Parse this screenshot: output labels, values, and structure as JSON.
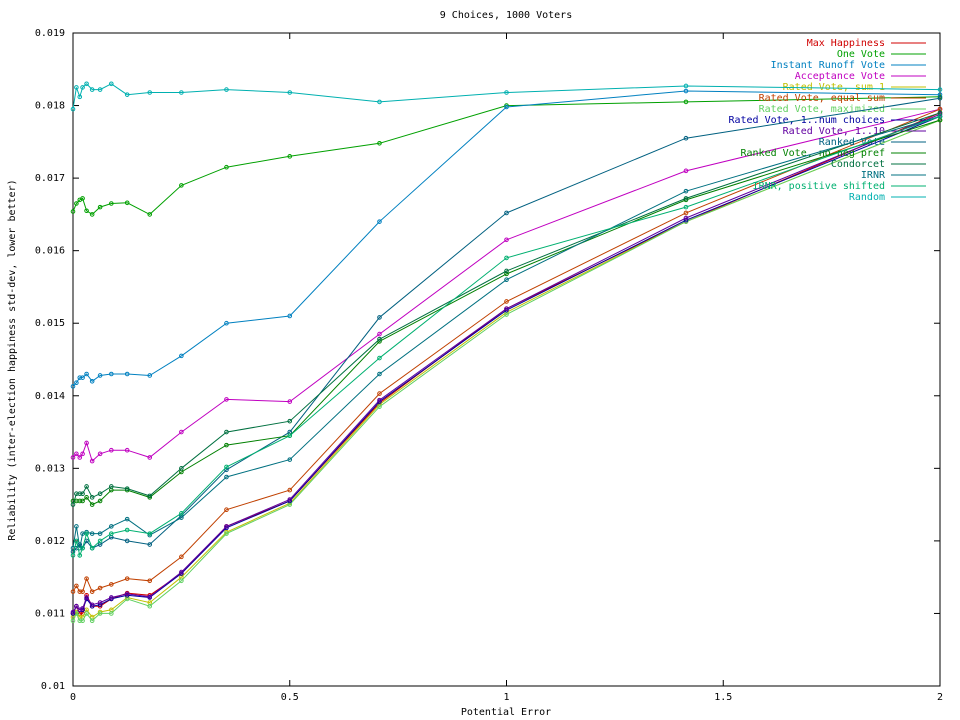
{
  "chart_data": {
    "type": "line",
    "title": "9 Choices, 1000 Voters",
    "x_label": "Potential Error",
    "y_label": "Reliability (inter-election happiness std-dev, lower better)",
    "x": [
      0,
      0.0078,
      0.0156,
      0.0221,
      0.0313,
      0.0442,
      0.0625,
      0.0884,
      0.125,
      0.177,
      0.25,
      0.354,
      0.5,
      0.707,
      1,
      1.414,
      2
    ],
    "xlim": [
      0,
      2
    ],
    "xticks": [
      0,
      0.5,
      1,
      1.5,
      2
    ],
    "ylim": [
      0.01,
      0.019
    ],
    "yticks": [
      0.01,
      0.011,
      0.012,
      0.013,
      0.014,
      0.015,
      0.016,
      0.017,
      0.018,
      0.019
    ],
    "legend": "upper right",
    "grid": false,
    "series": [
      {
        "name": "Max Happiness",
        "color": "#d00000",
        "values": [
          0.011,
          0.0111,
          0.011,
          0.011,
          0.01125,
          0.0111,
          0.0111,
          0.0112,
          0.01128,
          0.01125,
          0.01155,
          0.0122,
          0.01255,
          0.0139,
          0.0152,
          0.0164,
          0.0179
        ]
      },
      {
        "name": "One Vote",
        "color": "#00a000",
        "values": [
          0.01654,
          0.01665,
          0.0167,
          0.01672,
          0.01655,
          0.0165,
          0.0166,
          0.01665,
          0.01666,
          0.0165,
          0.0169,
          0.01715,
          0.0173,
          0.01748,
          0.018,
          0.01805,
          0.01812
        ]
      },
      {
        "name": "Instant Runoff Vote",
        "color": "#0080c0",
        "values": [
          0.01413,
          0.01418,
          0.01425,
          0.01425,
          0.0143,
          0.0142,
          0.01428,
          0.0143,
          0.0143,
          0.01428,
          0.01455,
          0.015,
          0.0151,
          0.0164,
          0.01798,
          0.0182,
          0.01815
        ]
      },
      {
        "name": "Acceptance Vote",
        "color": "#c000c0",
        "values": [
          0.01315,
          0.0132,
          0.01315,
          0.0132,
          0.01335,
          0.0131,
          0.0132,
          0.01325,
          0.01325,
          0.01315,
          0.0135,
          0.01395,
          0.01392,
          0.01485,
          0.01615,
          0.0171,
          0.01795
        ]
      },
      {
        "name": "Rated Vote, sum 1",
        "color": "#c0c000",
        "values": [
          0.01095,
          0.01102,
          0.01095,
          0.01095,
          0.01105,
          0.01095,
          0.01102,
          0.01105,
          0.01122,
          0.01115,
          0.0115,
          0.01212,
          0.01252,
          0.01388,
          0.01515,
          0.0164,
          0.0178
        ]
      },
      {
        "name": "Rated Vote, equal sum",
        "color": "#c04000",
        "values": [
          0.0113,
          0.01138,
          0.0113,
          0.0113,
          0.01148,
          0.0113,
          0.01135,
          0.0114,
          0.01148,
          0.01145,
          0.01178,
          0.01243,
          0.0127,
          0.01403,
          0.0153,
          0.01652,
          0.01795
        ]
      },
      {
        "name": "Rated Vote, maximized",
        "color": "#60d060",
        "values": [
          0.0109,
          0.011,
          0.0109,
          0.0109,
          0.011,
          0.0109,
          0.011,
          0.011,
          0.0112,
          0.0111,
          0.01145,
          0.0121,
          0.0125,
          0.01385,
          0.01512,
          0.0164,
          0.0178
        ]
      },
      {
        "name": "Rated Vote, 1..num choices",
        "color": "#0000a0",
        "values": [
          0.011,
          0.0111,
          0.01105,
          0.01105,
          0.0112,
          0.0111,
          0.01112,
          0.0112,
          0.01125,
          0.01122,
          0.01155,
          0.01218,
          0.01255,
          0.01392,
          0.01518,
          0.01642,
          0.01785
        ]
      },
      {
        "name": "Rated Vote, 1..10",
        "color": "#6000a0",
        "values": [
          0.01102,
          0.0111,
          0.01105,
          0.01107,
          0.01122,
          0.01112,
          0.01115,
          0.01122,
          0.01127,
          0.01123,
          0.01157,
          0.0122,
          0.01257,
          0.01394,
          0.0152,
          0.01645,
          0.01788
        ]
      },
      {
        "name": "Ranked Vote",
        "color": "#006080",
        "values": [
          0.01185,
          0.0119,
          0.01195,
          0.0119,
          0.012,
          0.0119,
          0.01195,
          0.01205,
          0.012,
          0.01195,
          0.01235,
          0.01298,
          0.0135,
          0.01508,
          0.01652,
          0.01755,
          0.0181
        ]
      },
      {
        "name": "Ranked Vote, no neg pref",
        "color": "#008000",
        "values": [
          0.01255,
          0.01255,
          0.01255,
          0.01255,
          0.0126,
          0.0125,
          0.01255,
          0.0127,
          0.0127,
          0.0126,
          0.01295,
          0.01332,
          0.01345,
          0.01475,
          0.01568,
          0.0167,
          0.0178
        ]
      },
      {
        "name": "Condorcet",
        "color": "#007040",
        "values": [
          0.0125,
          0.01265,
          0.01265,
          0.01265,
          0.01275,
          0.0126,
          0.01265,
          0.01275,
          0.01272,
          0.01262,
          0.013,
          0.0135,
          0.01365,
          0.01478,
          0.01572,
          0.01672,
          0.0179
        ]
      },
      {
        "name": "IRNR",
        "color": "#007080",
        "values": [
          0.0119,
          0.0122,
          0.0119,
          0.0121,
          0.01212,
          0.0121,
          0.0121,
          0.0122,
          0.0123,
          0.01208,
          0.01232,
          0.01288,
          0.01312,
          0.0143,
          0.0156,
          0.01682,
          0.01785
        ]
      },
      {
        "name": "IRNR, positive shifted",
        "color": "#00b070",
        "values": [
          0.0118,
          0.012,
          0.0118,
          0.0119,
          0.0121,
          0.0119,
          0.012,
          0.0121,
          0.01215,
          0.0121,
          0.01238,
          0.01302,
          0.01345,
          0.01452,
          0.0159,
          0.0166,
          0.01785
        ]
      },
      {
        "name": "Random",
        "color": "#00b0b0",
        "values": [
          0.01795,
          0.01825,
          0.01812,
          0.01825,
          0.0183,
          0.01822,
          0.01822,
          0.0183,
          0.01815,
          0.01818,
          0.01818,
          0.01822,
          0.01818,
          0.01805,
          0.01818,
          0.01827,
          0.01822
        ]
      }
    ]
  }
}
